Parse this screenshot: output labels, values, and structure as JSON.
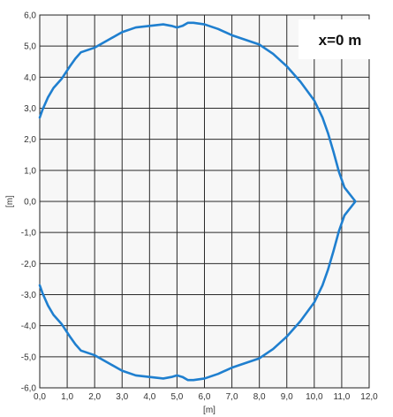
{
  "chart_data": {
    "type": "line",
    "title": "",
    "xlabel": "[m]",
    "ylabel": "[m]",
    "xlim": [
      0,
      12
    ],
    "ylim": [
      -6,
      6
    ],
    "x_ticks": [
      "0,0",
      "1,0",
      "2,0",
      "3,0",
      "4,0",
      "5,0",
      "6,0",
      "7,0",
      "8,0",
      "9,0",
      "10,0",
      "11,0",
      "12,0"
    ],
    "y_ticks": [
      "6,0",
      "5,0",
      "4,0",
      "3,0",
      "2,0",
      "1,0",
      "0,0",
      "-1,0",
      "-2,0",
      "-3,0",
      "-4,0",
      "-5,0",
      "-6,0"
    ],
    "x_tick_values": [
      0,
      1,
      2,
      3,
      4,
      5,
      6,
      7,
      8,
      9,
      10,
      11,
      12
    ],
    "y_tick_values": [
      6,
      5,
      4,
      3,
      2,
      1,
      0,
      -1,
      -2,
      -3,
      -4,
      -5,
      -6
    ],
    "grid": true,
    "annotation": "x=0 m",
    "series": [
      {
        "color": "#1f7fcf",
        "x": [
          0.0,
          0.1,
          0.3,
          0.5,
          0.8,
          1.1,
          1.3,
          1.5,
          2.0,
          2.5,
          3.0,
          3.5,
          4.0,
          4.5,
          4.8,
          5.0,
          5.2,
          5.4,
          5.6,
          6.0,
          6.5,
          7.0,
          7.5,
          8.0,
          8.5,
          9.0,
          9.5,
          10.0,
          10.3,
          10.5,
          10.7,
          10.9,
          11.1,
          11.5,
          11.1,
          10.9,
          10.7,
          10.5,
          10.3,
          10.0,
          9.5,
          9.0,
          8.5,
          8.0,
          7.5,
          7.0,
          6.5,
          6.0,
          5.6,
          5.4,
          5.2,
          5.0,
          4.8,
          4.5,
          4.0,
          3.5,
          3.0,
          2.5,
          2.0,
          1.5,
          1.3,
          1.1,
          0.8,
          0.5,
          0.3,
          0.1,
          0.0
        ],
        "y": [
          2.7,
          2.95,
          3.35,
          3.65,
          3.95,
          4.35,
          4.6,
          4.8,
          4.95,
          5.2,
          5.45,
          5.6,
          5.65,
          5.7,
          5.65,
          5.6,
          5.65,
          5.75,
          5.75,
          5.7,
          5.55,
          5.35,
          5.2,
          5.05,
          4.75,
          4.35,
          3.85,
          3.25,
          2.7,
          2.2,
          1.6,
          0.95,
          0.45,
          0.0,
          -0.45,
          -0.95,
          -1.6,
          -2.2,
          -2.7,
          -3.25,
          -3.85,
          -4.35,
          -4.75,
          -5.05,
          -5.2,
          -5.35,
          -5.55,
          -5.7,
          -5.75,
          -5.75,
          -5.65,
          -5.6,
          -5.65,
          -5.7,
          -5.65,
          -5.6,
          -5.45,
          -5.2,
          -4.95,
          -4.8,
          -4.6,
          -4.35,
          -3.95,
          -3.65,
          -3.35,
          -2.95,
          -2.7
        ]
      }
    ]
  }
}
